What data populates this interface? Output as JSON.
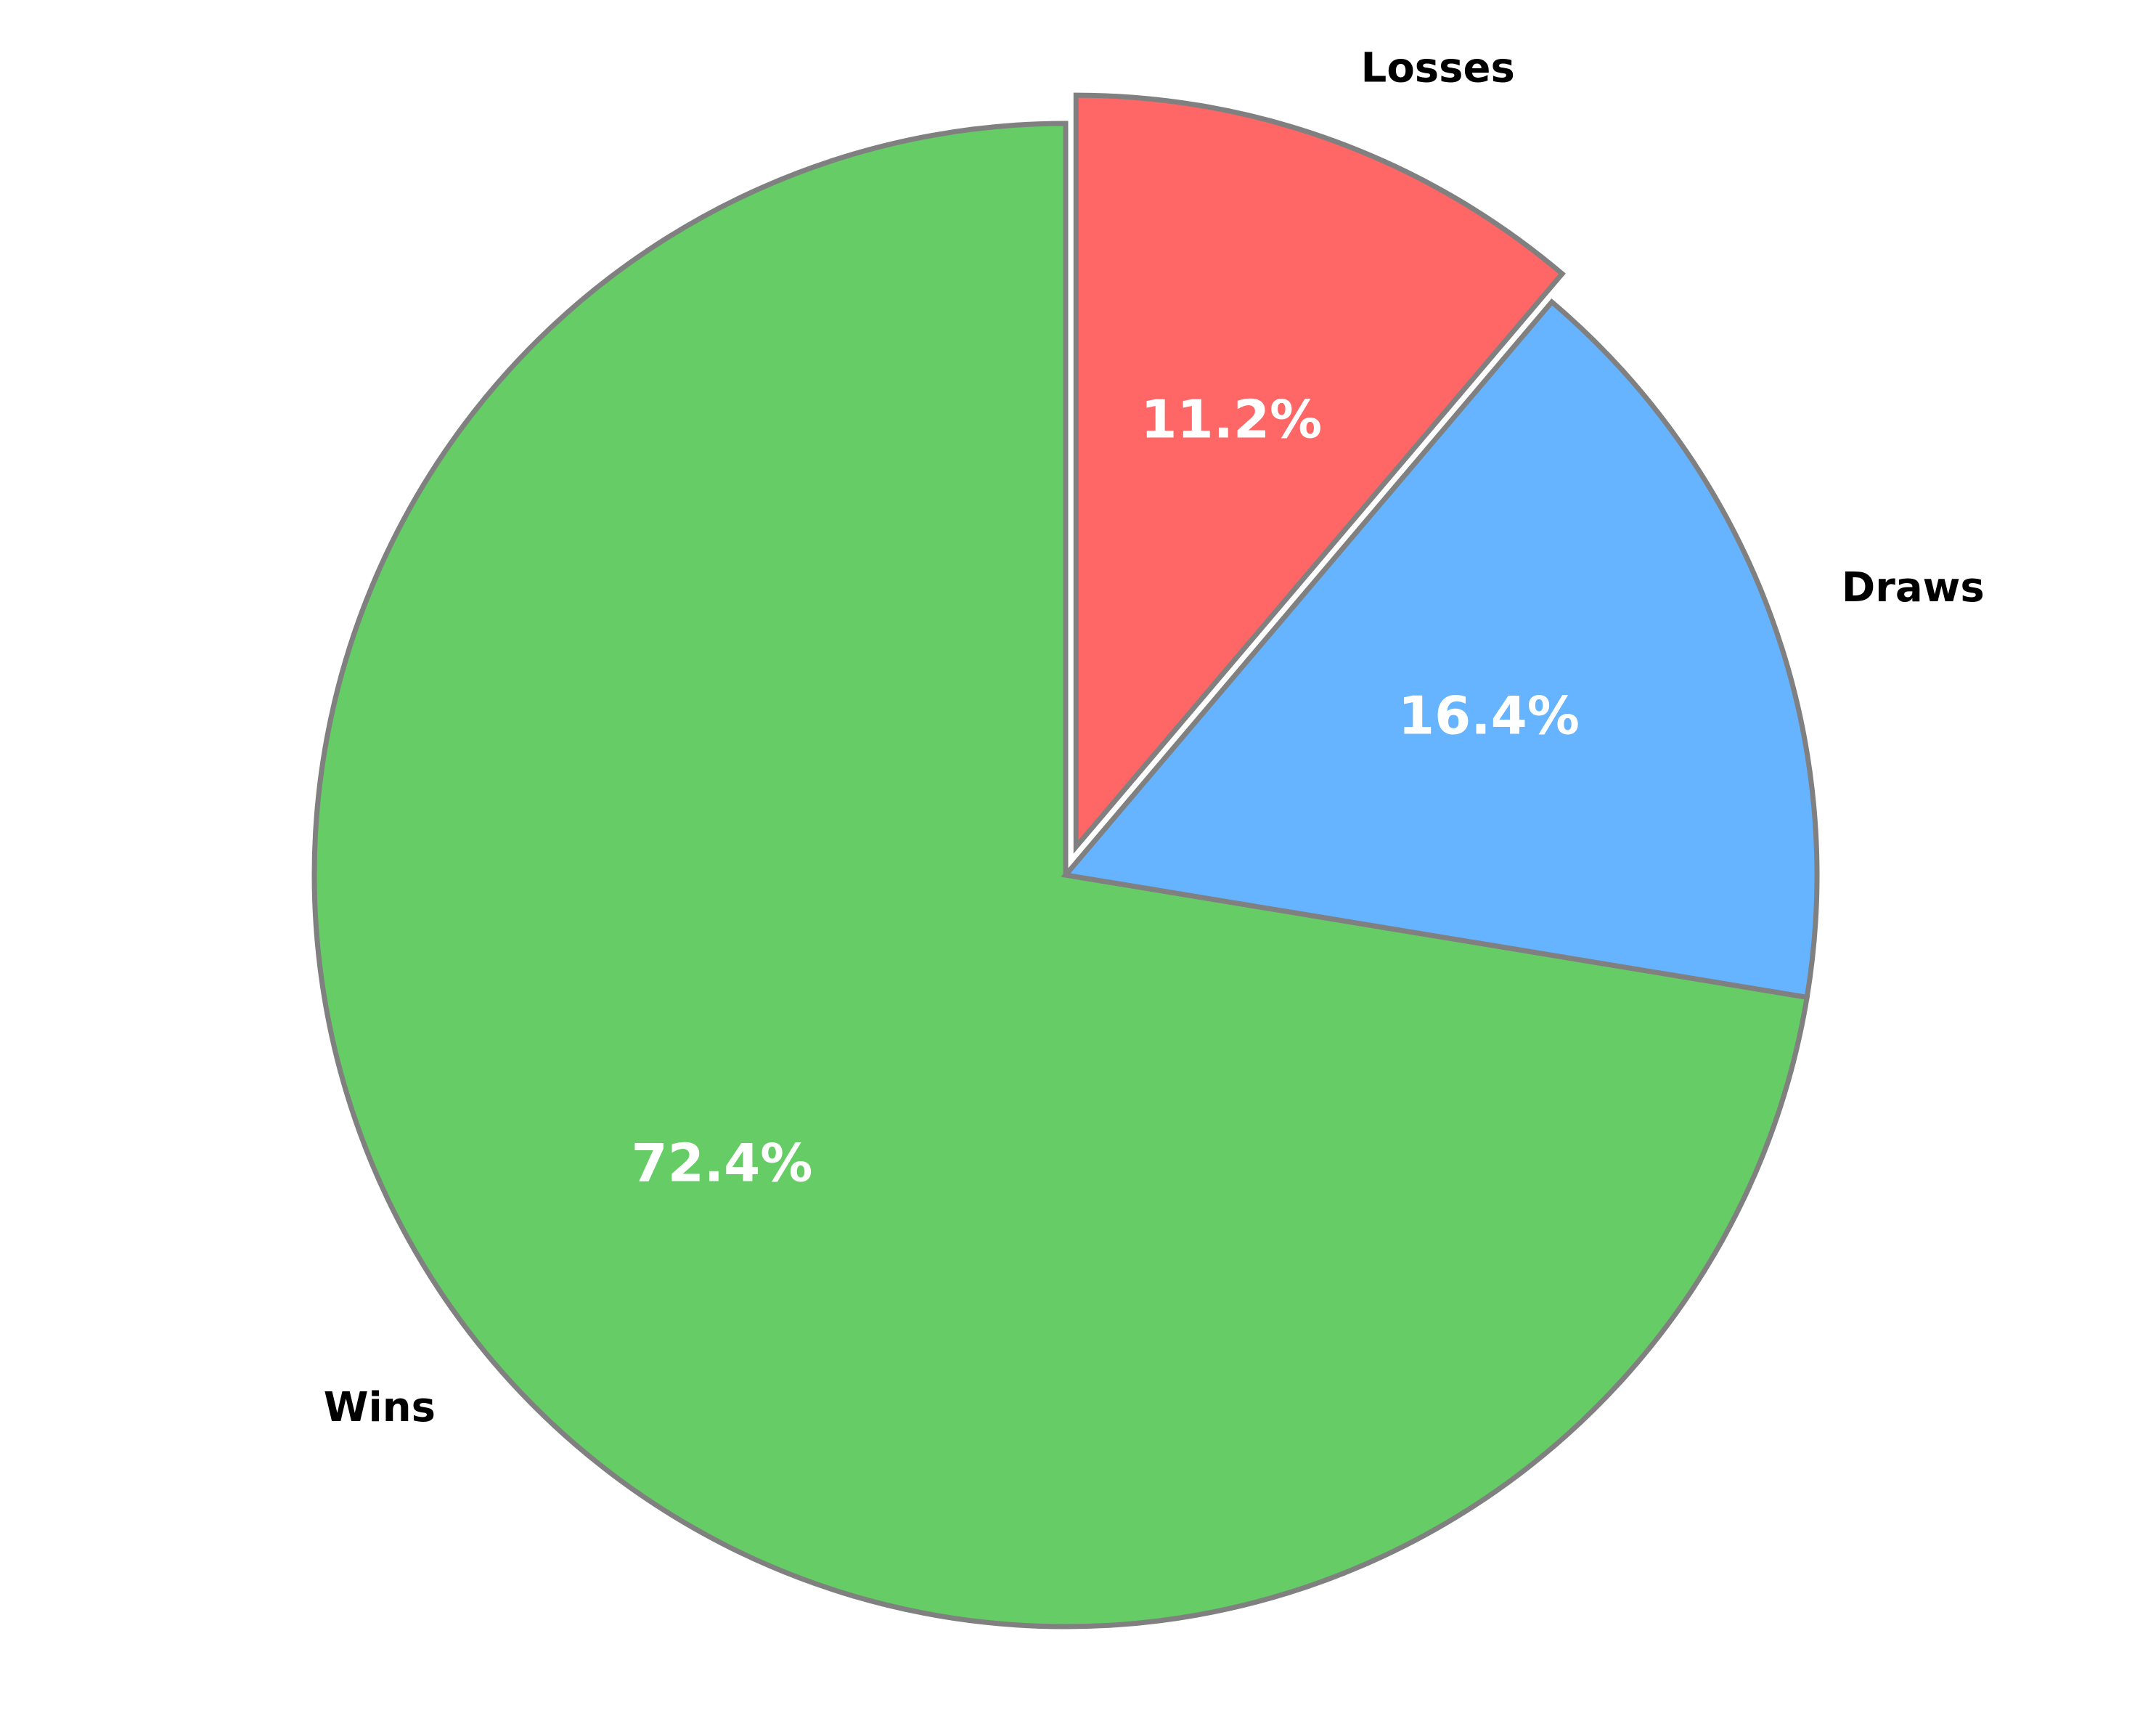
{
  "chart_data": {
    "type": "pie",
    "title": "",
    "start_angle_deg": 90,
    "direction": "clockwise",
    "slices": [
      {
        "label": "Wins",
        "value": 72.4,
        "pct_label": "72.4%",
        "color": "#66CC66",
        "explode": 0
      },
      {
        "label": "Draws",
        "value": 16.4,
        "pct_label": "16.4%",
        "color": "#66B3FF",
        "explode": 0
      },
      {
        "label": "Losses",
        "value": 11.2,
        "pct_label": "11.2%",
        "color": "#FF6666",
        "explode": 0.04
      }
    ],
    "edge_color": "#808080",
    "legend": "none"
  }
}
